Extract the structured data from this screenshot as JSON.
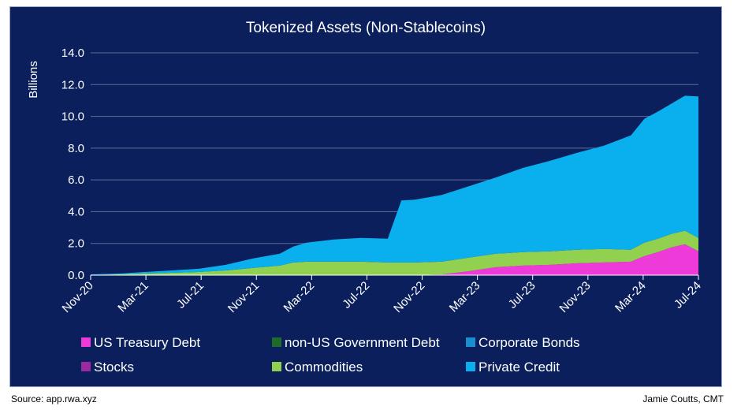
{
  "chart_data": {
    "type": "area",
    "stacked": true,
    "title": "Tokenized Assets (Non-Stablecoins)",
    "ylabel": "Billions",
    "xlabel": "",
    "ylim": [
      0,
      14
    ],
    "yticks": [
      "0.0",
      "2.0",
      "4.0",
      "6.0",
      "8.0",
      "10.0",
      "12.0",
      "14.0"
    ],
    "x_tick_labels": [
      "Nov-20",
      "Mar-21",
      "Jul-21",
      "Nov-21",
      "Mar-22",
      "Jul-22",
      "Nov-22",
      "Mar-23",
      "Jul-23",
      "Nov-23",
      "Mar-24",
      "Jul-24"
    ],
    "grid": true,
    "legend_position": "bottom",
    "x": [
      "2020-11",
      "2021-01",
      "2021-03",
      "2021-05",
      "2021-07",
      "2021-09",
      "2021-11",
      "2022-01",
      "2022-02",
      "2022-03",
      "2022-05",
      "2022-07",
      "2022-09",
      "2022-10",
      "2022-11",
      "2023-01",
      "2023-03",
      "2023-05",
      "2023-07",
      "2023-09",
      "2023-11",
      "2024-01",
      "2024-03",
      "2024-04",
      "2024-05",
      "2024-06",
      "2024-07",
      "2024-08"
    ],
    "series": [
      {
        "name": "US Treasury Debt",
        "color": "#ee3ad8",
        "values": [
          0,
          0,
          0,
          0,
          0,
          0,
          0,
          0,
          0,
          0,
          0,
          0,
          0,
          0,
          0,
          0.05,
          0.25,
          0.5,
          0.6,
          0.65,
          0.75,
          0.8,
          0.85,
          1.2,
          1.45,
          1.75,
          1.95,
          1.5
        ]
      },
      {
        "name": "non-US Government Debt",
        "color": "#1e6b2a",
        "values": [
          0,
          0,
          0,
          0,
          0,
          0,
          0,
          0,
          0,
          0,
          0,
          0,
          0,
          0,
          0,
          0,
          0,
          0,
          0,
          0,
          0,
          0,
          0,
          0,
          0,
          0,
          0,
          0
        ]
      },
      {
        "name": "Corporate Bonds",
        "color": "#1a8fd0",
        "values": [
          0,
          0,
          0,
          0,
          0,
          0,
          0,
          0,
          0,
          0,
          0,
          0,
          0,
          0,
          0,
          0,
          0,
          0,
          0,
          0,
          0,
          0,
          0,
          0,
          0,
          0,
          0,
          0
        ]
      },
      {
        "name": "Stocks",
        "color": "#9b2aa0",
        "values": [
          0,
          0,
          0,
          0,
          0,
          0,
          0,
          0,
          0,
          0,
          0,
          0,
          0,
          0,
          0,
          0,
          0,
          0,
          0,
          0,
          0,
          0,
          0,
          0,
          0,
          0,
          0,
          0
        ]
      },
      {
        "name": "Commodities",
        "color": "#92d050",
        "values": [
          0.02,
          0.05,
          0.1,
          0.15,
          0.2,
          0.3,
          0.45,
          0.6,
          0.8,
          0.85,
          0.85,
          0.85,
          0.8,
          0.8,
          0.8,
          0.8,
          0.85,
          0.85,
          0.85,
          0.85,
          0.85,
          0.85,
          0.75,
          0.85,
          0.85,
          0.85,
          0.85,
          0.85
        ]
      },
      {
        "name": "Private Credit",
        "color": "#0ab0ee",
        "values": [
          0.03,
          0.05,
          0.1,
          0.15,
          0.2,
          0.35,
          0.6,
          0.75,
          1.0,
          1.2,
          1.4,
          1.5,
          1.5,
          3.9,
          3.95,
          4.2,
          4.5,
          4.8,
          5.3,
          5.7,
          6.1,
          6.5,
          7.2,
          7.8,
          8.0,
          8.2,
          8.5,
          8.9
        ]
      }
    ]
  },
  "footer": {
    "source": "Source: app.rwa.xyz",
    "author": "Jamie Coutts, CMT"
  }
}
